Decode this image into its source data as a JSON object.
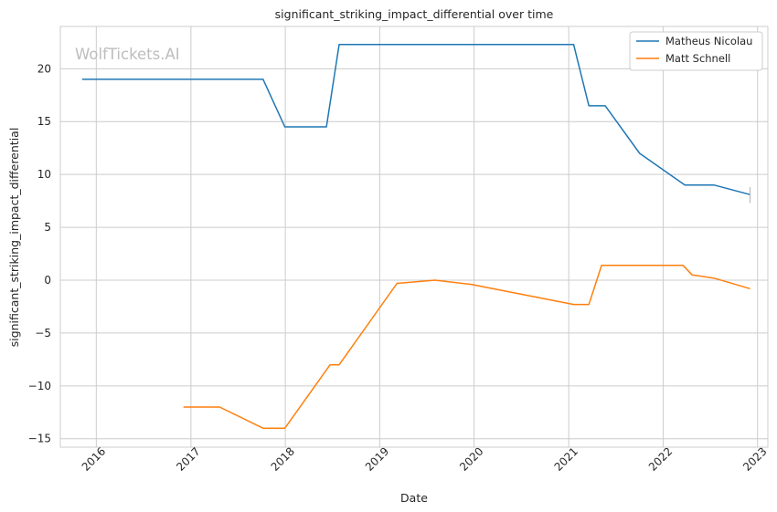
{
  "chart_data": {
    "type": "line",
    "title": "significant_striking_impact_differential over time",
    "xlabel": "Date",
    "ylabel": "significant_striking_impact_differential",
    "watermark": "WolfTickets.AI",
    "x_tick_labels": [
      "2016",
      "2017",
      "2018",
      "2019",
      "2020",
      "2021",
      "2022",
      "2023"
    ],
    "y_ticks": [
      -15,
      -10,
      -5,
      0,
      5,
      10,
      15,
      20
    ],
    "y_tick_labels": [
      "−15",
      "−10",
      "−5",
      "0",
      "5",
      "10",
      "15",
      "20"
    ],
    "xlim": [
      "2015-08-15",
      "2023-02-10"
    ],
    "ylim": [
      -15.8,
      24
    ],
    "grid": true,
    "legend_position": "top-right",
    "series": [
      {
        "name": "Matheus Nicolau",
        "color": "#1f77b4",
        "points": [
          [
            "2015-11-07",
            19
          ],
          [
            "2017-10-07",
            19
          ],
          [
            "2017-12-30",
            14.5
          ],
          [
            "2018-06-09",
            14.5
          ],
          [
            "2018-07-28",
            22.3
          ],
          [
            "2021-01-20",
            22.3
          ],
          [
            "2021-03-20",
            16.5
          ],
          [
            "2021-05-22",
            16.5
          ],
          [
            "2021-10-02",
            12
          ],
          [
            "2022-03-26",
            9
          ],
          [
            "2022-07-16",
            9
          ],
          [
            "2022-12-03",
            8.1
          ]
        ]
      },
      {
        "name": "Matt Schnell",
        "color": "#ff7f0e",
        "points": [
          [
            "2016-12-03",
            -12
          ],
          [
            "2017-04-22",
            -12
          ],
          [
            "2017-10-07",
            -14
          ],
          [
            "2017-12-30",
            -14
          ],
          [
            "2018-06-23",
            -8
          ],
          [
            "2018-07-28",
            -8
          ],
          [
            "2019-03-09",
            -0.3
          ],
          [
            "2019-08-03",
            0
          ],
          [
            "2019-12-21",
            -0.4
          ],
          [
            "2021-01-20",
            -2.3
          ],
          [
            "2021-03-20",
            -2.3
          ],
          [
            "2021-05-08",
            1.4
          ],
          [
            "2022-03-19",
            1.4
          ],
          [
            "2022-04-23",
            0.5
          ],
          [
            "2022-07-16",
            0.2
          ],
          [
            "2022-12-03",
            -0.8
          ]
        ]
      }
    ]
  }
}
